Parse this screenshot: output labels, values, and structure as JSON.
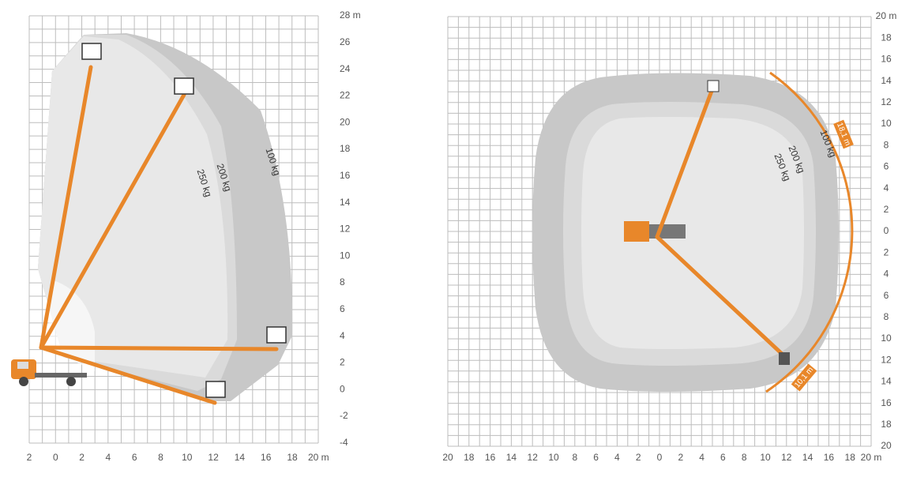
{
  "side_view": {
    "x_labels": [
      "2",
      "0",
      "2",
      "4",
      "6",
      "8",
      "10",
      "12",
      "14",
      "16",
      "18",
      "20 m"
    ],
    "y_labels": [
      "28 m",
      "26",
      "24",
      "22",
      "20",
      "18",
      "16",
      "14",
      "12",
      "10",
      "8",
      "6",
      "4",
      "2",
      "0",
      "-2",
      "-4"
    ],
    "zones": [
      "250 kg",
      "200 kg",
      "100 kg"
    ]
  },
  "top_view": {
    "x_labels": [
      "20",
      "18",
      "16",
      "14",
      "12",
      "10",
      "8",
      "6",
      "4",
      "2",
      "0",
      "2",
      "4",
      "6",
      "8",
      "10",
      "12",
      "14",
      "16",
      "18",
      "20 m"
    ],
    "y_labels": [
      "20 m",
      "18",
      "16",
      "14",
      "12",
      "10",
      "8",
      "6",
      "4",
      "2",
      "0",
      "2",
      "4",
      "6",
      "8",
      "10",
      "12",
      "14",
      "16",
      "18",
      "20"
    ],
    "zones": [
      "250 kg",
      "200 kg",
      "100 kg"
    ],
    "reach_labels": [
      "18,1 m",
      "10,1 m"
    ]
  }
}
